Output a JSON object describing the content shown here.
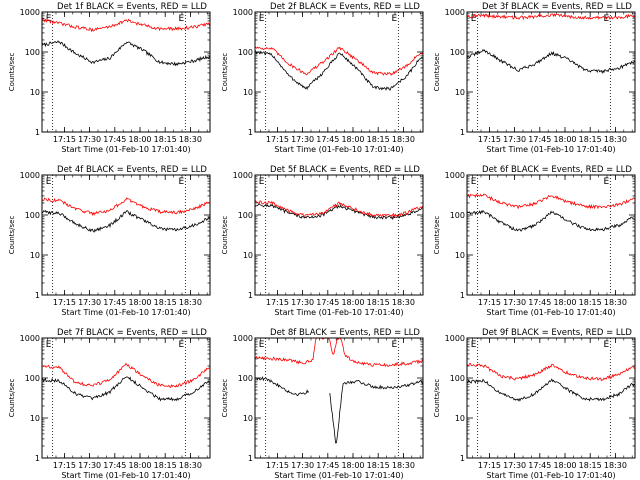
{
  "figure": {
    "background": "#ffffff",
    "axis_color": "#000000",
    "y_axis_label": "Counts/sec",
    "x_axis_label": "Start Time (01-Feb-10 17:01:40)",
    "x_ticks": [
      "17:15",
      "17:30",
      "17:45",
      "18:00",
      "18:15",
      "18:30"
    ],
    "y_ticks": [
      "1",
      "10",
      "100",
      "1000"
    ],
    "marker_labels": [
      "E",
      "E"
    ]
  },
  "chart_data": [
    {
      "type": "line",
      "title": "Det 1f BLACK = Events, RED = LLD",
      "ylim": [
        1,
        1000
      ],
      "yscale": "log",
      "xlim": [
        "17:01:40",
        "18:41:40"
      ],
      "markers": [
        "17:08",
        "18:27"
      ],
      "series": [
        {
          "color": "#000000",
          "x": [
            "17:02",
            "17:12",
            "17:22",
            "17:32",
            "17:42",
            "17:52",
            "18:02",
            "18:12",
            "18:22",
            "18:32",
            "18:40"
          ],
          "values": [
            150,
            180,
            90,
            55,
            70,
            180,
            110,
            55,
            50,
            60,
            75
          ]
        },
        {
          "color": "#ff0000",
          "x": [
            "17:02",
            "17:12",
            "17:22",
            "17:32",
            "17:42",
            "17:52",
            "18:02",
            "18:12",
            "18:22",
            "18:32",
            "18:40"
          ],
          "values": [
            650,
            520,
            420,
            360,
            430,
            620,
            470,
            380,
            380,
            420,
            500
          ]
        }
      ]
    },
    {
      "type": "line",
      "title": "Det 2f BLACK = Events, RED = LLD",
      "ylim": [
        1,
        1000
      ],
      "yscale": "log",
      "xlim": [
        "17:01:40",
        "18:41:40"
      ],
      "markers": [
        "17:08",
        "18:27"
      ],
      "series": [
        {
          "color": "#000000",
          "x": [
            "17:02",
            "17:12",
            "17:22",
            "17:32",
            "17:42",
            "17:52",
            "18:02",
            "18:12",
            "18:22",
            "18:32",
            "18:40"
          ],
          "values": [
            100,
            85,
            25,
            12,
            30,
            95,
            40,
            13,
            12,
            25,
            70
          ]
        },
        {
          "color": "#ff0000",
          "x": [
            "17:02",
            "17:12",
            "17:22",
            "17:32",
            "17:42",
            "17:52",
            "18:02",
            "18:12",
            "18:22",
            "18:32",
            "18:40"
          ],
          "values": [
            130,
            120,
            50,
            28,
            55,
            130,
            65,
            30,
            28,
            45,
            95
          ]
        }
      ]
    },
    {
      "type": "line",
      "title": "Det 3f BLACK = Events, RED = LLD",
      "ylim": [
        1,
        1000
      ],
      "yscale": "log",
      "xlim": [
        "17:01:40",
        "18:41:40"
      ],
      "markers": [
        "17:08",
        "18:27"
      ],
      "series": [
        {
          "color": "#000000",
          "x": [
            "17:02",
            "17:12",
            "17:22",
            "17:32",
            "17:42",
            "17:52",
            "18:02",
            "18:12",
            "18:22",
            "18:32",
            "18:40"
          ],
          "values": [
            75,
            110,
            60,
            35,
            50,
            95,
            65,
            35,
            33,
            40,
            55
          ]
        },
        {
          "color": "#ff0000",
          "x": [
            "17:02",
            "17:12",
            "17:22",
            "17:32",
            "17:42",
            "17:52",
            "18:02",
            "18:12",
            "18:22",
            "18:32",
            "18:40"
          ],
          "values": [
            780,
            820,
            760,
            720,
            760,
            840,
            780,
            730,
            720,
            740,
            800
          ]
        }
      ]
    },
    {
      "type": "line",
      "title": "Det 4f BLACK = Events, RED = LLD",
      "ylim": [
        1,
        1000
      ],
      "yscale": "log",
      "xlim": [
        "17:01:40",
        "18:41:40"
      ],
      "markers": [
        "17:08",
        "18:27"
      ],
      "series": [
        {
          "color": "#000000",
          "x": [
            "17:02",
            "17:12",
            "17:22",
            "17:32",
            "17:42",
            "17:52",
            "18:02",
            "18:12",
            "18:22",
            "18:32",
            "18:40"
          ],
          "values": [
            120,
            110,
            60,
            40,
            55,
            120,
            75,
            45,
            42,
            55,
            80
          ]
        },
        {
          "color": "#ff0000",
          "x": [
            "17:02",
            "17:12",
            "17:22",
            "17:32",
            "17:42",
            "17:52",
            "18:02",
            "18:12",
            "18:22",
            "18:32",
            "18:40"
          ],
          "values": [
            250,
            230,
            140,
            110,
            130,
            250,
            160,
            120,
            115,
            140,
            200
          ]
        }
      ]
    },
    {
      "type": "line",
      "title": "Det 5f BLACK = Events, RED = LLD",
      "ylim": [
        1,
        1000
      ],
      "yscale": "log",
      "xlim": [
        "17:01:40",
        "18:41:40"
      ],
      "markers": [
        "17:08",
        "18:27"
      ],
      "series": [
        {
          "color": "#000000",
          "x": [
            "17:02",
            "17:12",
            "17:22",
            "17:32",
            "17:42",
            "17:52",
            "18:02",
            "18:12",
            "18:22",
            "18:32",
            "18:40"
          ],
          "values": [
            180,
            170,
            110,
            85,
            100,
            170,
            120,
            90,
            85,
            100,
            140
          ]
        },
        {
          "color": "#ff0000",
          "x": [
            "17:02",
            "17:12",
            "17:22",
            "17:32",
            "17:42",
            "17:52",
            "18:02",
            "18:12",
            "18:22",
            "18:32",
            "18:40"
          ],
          "values": [
            210,
            200,
            125,
            95,
            115,
            200,
            135,
            100,
            95,
            115,
            160
          ]
        }
      ]
    },
    {
      "type": "line",
      "title": "Det 6f BLACK = Events, RED = LLD",
      "ylim": [
        1,
        1000
      ],
      "yscale": "log",
      "xlim": [
        "17:01:40",
        "18:41:40"
      ],
      "markers": [
        "17:08",
        "18:27"
      ],
      "series": [
        {
          "color": "#000000",
          "x": [
            "17:02",
            "17:12",
            "17:22",
            "17:32",
            "17:42",
            "17:52",
            "18:02",
            "18:12",
            "18:22",
            "18:32",
            "18:40"
          ],
          "values": [
            110,
            120,
            65,
            40,
            55,
            120,
            70,
            45,
            43,
            55,
            85
          ]
        },
        {
          "color": "#ff0000",
          "x": [
            "17:02",
            "17:12",
            "17:22",
            "17:32",
            "17:42",
            "17:52",
            "18:02",
            "18:12",
            "18:22",
            "18:32",
            "18:40"
          ],
          "values": [
            300,
            310,
            200,
            160,
            190,
            310,
            210,
            165,
            160,
            180,
            250
          ]
        }
      ]
    },
    {
      "type": "line",
      "title": "Det 7f BLACK = Events, RED = LLD",
      "ylim": [
        1,
        1000
      ],
      "yscale": "log",
      "xlim": [
        "17:01:40",
        "18:41:40"
      ],
      "markers": [
        "17:08",
        "18:27"
      ],
      "series": [
        {
          "color": "#000000",
          "x": [
            "17:02",
            "17:12",
            "17:22",
            "17:32",
            "17:42",
            "17:52",
            "18:02",
            "18:12",
            "18:22",
            "18:32",
            "18:40"
          ],
          "values": [
            90,
            85,
            40,
            30,
            45,
            110,
            55,
            30,
            30,
            45,
            80
          ]
        },
        {
          "color": "#ff0000",
          "x": [
            "17:02",
            "17:12",
            "17:22",
            "17:32",
            "17:42",
            "17:52",
            "18:02",
            "18:12",
            "18:22",
            "18:32",
            "18:40"
          ],
          "values": [
            200,
            180,
            75,
            65,
            90,
            220,
            110,
            65,
            62,
            90,
            170
          ]
        }
      ]
    },
    {
      "type": "line",
      "title": "Det 8f BLACK = Events, RED = LLD",
      "ylim": [
        1,
        1000
      ],
      "yscale": "log",
      "xlim": [
        "17:01:40",
        "18:41:40"
      ],
      "markers": [
        "17:08",
        "18:27"
      ],
      "series": [
        {
          "color": "#000000",
          "x": [
            "17:02",
            "17:08",
            "17:16",
            "17:24",
            "17:30",
            "17:34",
            "17:44",
            "17:46",
            "17:50",
            "17:54",
            "18:02",
            "18:12",
            "18:22",
            "18:32",
            "18:40"
          ],
          "values": [
            100,
            95,
            65,
            40,
            40,
            50,
            null,
            45,
            2,
            70,
            85,
            60,
            58,
            65,
            80
          ]
        },
        {
          "color": "#ff0000",
          "x": [
            "17:02",
            "17:08",
            "17:16",
            "17:24",
            "17:30",
            "17:36",
            "17:38",
            "17:40",
            "17:44",
            "17:46",
            "17:48",
            "17:51",
            "17:53",
            "17:55",
            "18:02",
            "18:12",
            "18:22",
            "18:32",
            "18:40"
          ],
          "values": [
            330,
            310,
            300,
            270,
            240,
            280,
            1000,
            1000,
            1000,
            1000,
            340,
            1000,
            1000,
            380,
            240,
            210,
            215,
            230,
            260
          ]
        }
      ]
    },
    {
      "type": "line",
      "title": "Det 9f BLACK = Events, RED = LLD",
      "ylim": [
        1,
        1000
      ],
      "yscale": "log",
      "xlim": [
        "17:01:40",
        "18:41:40"
      ],
      "markers": [
        "17:08",
        "18:27"
      ],
      "series": [
        {
          "color": "#000000",
          "x": [
            "17:02",
            "17:12",
            "17:22",
            "17:32",
            "17:42",
            "17:52",
            "18:02",
            "18:12",
            "18:22",
            "18:32",
            "18:40"
          ],
          "values": [
            80,
            85,
            40,
            28,
            40,
            90,
            50,
            30,
            29,
            40,
            70
          ]
        },
        {
          "color": "#ff0000",
          "x": [
            "17:02",
            "17:12",
            "17:22",
            "17:32",
            "17:42",
            "17:52",
            "18:02",
            "18:12",
            "18:22",
            "18:32",
            "18:40"
          ],
          "values": [
            220,
            200,
            110,
            95,
            120,
            210,
            130,
            100,
            95,
            120,
            190
          ]
        }
      ]
    }
  ]
}
